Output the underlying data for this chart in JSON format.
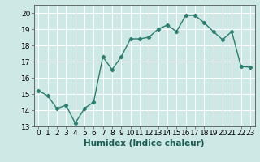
{
  "x": [
    0,
    1,
    2,
    3,
    4,
    5,
    6,
    7,
    8,
    9,
    10,
    11,
    12,
    13,
    14,
    15,
    16,
    17,
    18,
    19,
    20,
    21,
    22,
    23
  ],
  "y": [
    15.2,
    14.9,
    14.1,
    14.3,
    13.2,
    14.1,
    14.5,
    17.3,
    16.5,
    17.3,
    18.4,
    18.4,
    18.5,
    19.0,
    19.25,
    18.85,
    19.85,
    19.85,
    19.4,
    18.85,
    18.35,
    18.85,
    16.7,
    16.65
  ],
  "line_color": "#2e7d6e",
  "marker": "D",
  "marker_size": 2.2,
  "bg_color": "#cde8e5",
  "grid_color": "#ffffff",
  "xlabel": "Humidex (Indice chaleur)",
  "ylim": [
    13,
    20.5
  ],
  "xlim": [
    -0.5,
    23.5
  ],
  "yticks": [
    13,
    14,
    15,
    16,
    17,
    18,
    19,
    20
  ],
  "xticks": [
    0,
    1,
    2,
    3,
    4,
    5,
    6,
    7,
    8,
    9,
    10,
    11,
    12,
    13,
    14,
    15,
    16,
    17,
    18,
    19,
    20,
    21,
    22,
    23
  ],
  "tick_fontsize": 6.5,
  "xlabel_fontsize": 7.5,
  "line_width": 1.0
}
